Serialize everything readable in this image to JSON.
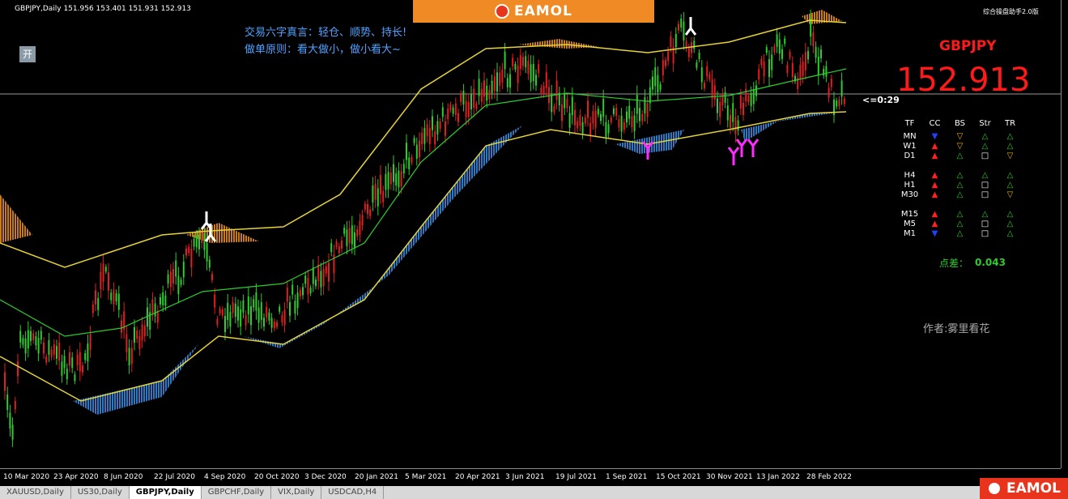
{
  "header": {
    "info": "GBPJPY,Daily  151.956 153.401 151.931 152.913",
    "brand": "EAMOL",
    "helper": "综合操盘助手2.0版"
  },
  "notes": [
    "交易六字真言：轻仓、顺势、持长!",
    "做单原则：看大做小，做小看大~"
  ],
  "button": "开",
  "panel": {
    "symbol": "GBPJPY",
    "price": "152.913",
    "countdown": "<=0:29",
    "columns": [
      "TF",
      "CC",
      "BS",
      "Str",
      "TR"
    ],
    "groups": [
      [
        {
          "tf": "MN",
          "cells": [
            "▼",
            "▽",
            "△",
            "△"
          ]
        },
        {
          "tf": "W1",
          "cells": [
            "▲",
            "▽",
            "△",
            "△"
          ]
        },
        {
          "tf": "D1",
          "cells": [
            "▲",
            "△",
            "□",
            "▽"
          ]
        }
      ],
      [
        {
          "tf": "H4",
          "cells": [
            "▲",
            "△",
            "△",
            "△"
          ]
        },
        {
          "tf": "H1",
          "cells": [
            "▲",
            "△",
            "□",
            "△"
          ]
        },
        {
          "tf": "M30",
          "cells": [
            "▲",
            "△",
            "□",
            "▽"
          ]
        }
      ],
      [
        {
          "tf": "M15",
          "cells": [
            "▲",
            "△",
            "△",
            "△"
          ]
        },
        {
          "tf": "M5",
          "cells": [
            "▲",
            "△",
            "□",
            "△"
          ]
        },
        {
          "tf": "M1",
          "cells": [
            "▼",
            "△",
            "□",
            "△"
          ]
        }
      ]
    ],
    "spread_label": "点差：",
    "spread": "0.043",
    "author": "作者:雾里看花"
  },
  "x_axis": {
    "labels": [
      "10 Mar 2020",
      "23 Apr 2020",
      "8 Jun 2020",
      "22 Jul 2020",
      "4 Sep 2020",
      "20 Oct 2020",
      "3 Dec 2020",
      "20 Jan 2021",
      "5 Mar 2021",
      "20 Apr 2021",
      "3 Jun 2021",
      "19 Jul 2021",
      "1 Sep 2021",
      "15 Oct 2021",
      "30 Nov 2021",
      "13 Jan 2022",
      "28 Feb 2022"
    ]
  },
  "tabs": [
    "XAUUSD,Daily",
    "US30,Daily",
    "GBPJPY,Daily",
    "GBPCHF,Daily",
    "VIX,Daily",
    "USDCAD,H4"
  ],
  "active_tab": 2,
  "footer_brand": "EAMOL"
}
